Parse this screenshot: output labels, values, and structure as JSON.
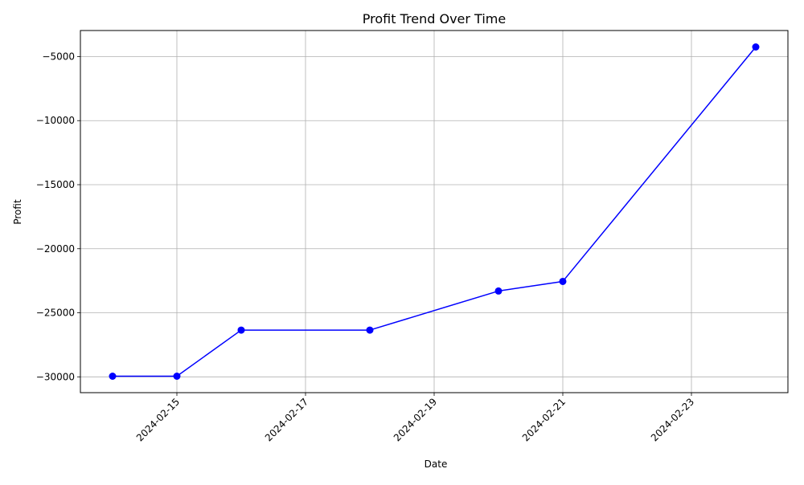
{
  "chart_data": {
    "type": "line",
    "title": "Profit Trend Over Time",
    "xlabel": "Date",
    "ylabel": "Profit",
    "x": [
      "2024-02-14",
      "2024-02-15",
      "2024-02-16",
      "2024-02-18",
      "2024-02-20",
      "2024-02-21",
      "2024-02-24"
    ],
    "values": [
      -29950,
      -29950,
      -26350,
      -26350,
      -23300,
      -22550,
      -4250
    ],
    "x_ticks": [
      "2024-02-15",
      "2024-02-17",
      "2024-02-19",
      "2024-02-21",
      "2024-02-23"
    ],
    "y_ticks": [
      -30000,
      -25000,
      -20000,
      -15000,
      -10000,
      -5000
    ],
    "y_tick_labels": [
      "−30000",
      "−25000",
      "−20000",
      "−15000",
      "−10000",
      "−5000"
    ],
    "xlim": [
      "2024-02-13.5",
      "2024-02-24.5"
    ],
    "ylim": [
      -31235,
      -2965
    ],
    "grid": true,
    "line_color": "#0000ff",
    "marker": "circle"
  }
}
